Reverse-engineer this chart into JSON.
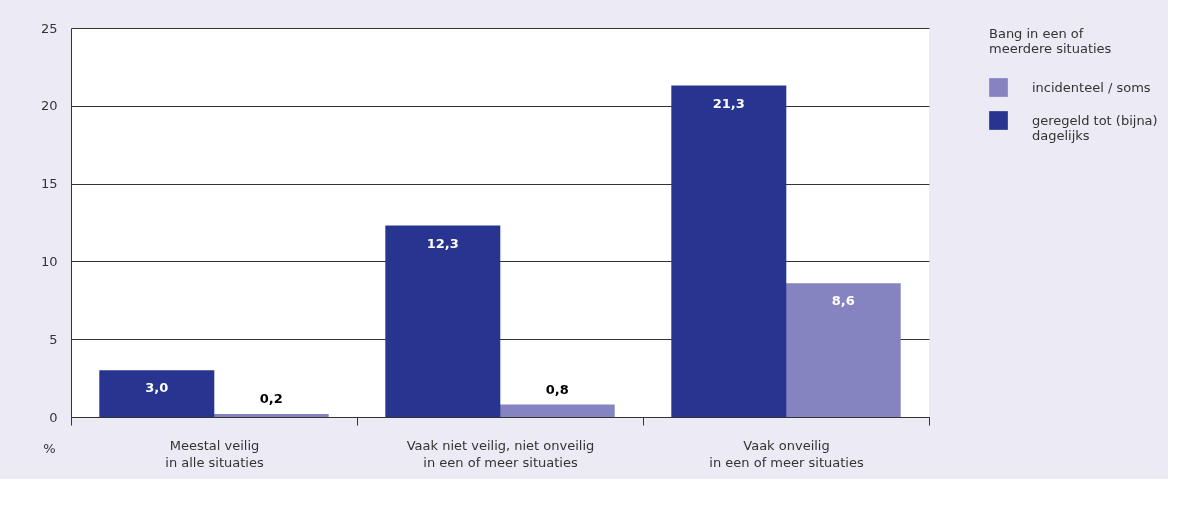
{
  "chart_data": {
    "type": "bar",
    "ylabel": "%",
    "legend_title": "Bang in een of\nmeerdere situaties",
    "categories": [
      "Meestal veilig\nin alle situaties",
      "Vaak niet veilig, niet onveilig\nin een of meer situaties",
      "Vaak onveilig\nin een of meer situaties"
    ],
    "series": [
      {
        "name": "incidenteel / soms",
        "color": "#8584c0",
        "values": [
          0.2,
          0.8,
          8.6
        ],
        "value_labels": [
          "0,2",
          "0,8",
          "8,6"
        ]
      },
      {
        "name": "geregeld tot (bijna)\ndagelijks",
        "color": "#283590",
        "values": [
          3.0,
          12.3,
          21.3
        ],
        "value_labels": [
          "3,0",
          "12,3",
          "21,3"
        ]
      }
    ],
    "ylim": [
      0,
      25
    ],
    "yticks": [
      0,
      5,
      10,
      15,
      20,
      25
    ],
    "grid": "y",
    "legend": "top right"
  }
}
